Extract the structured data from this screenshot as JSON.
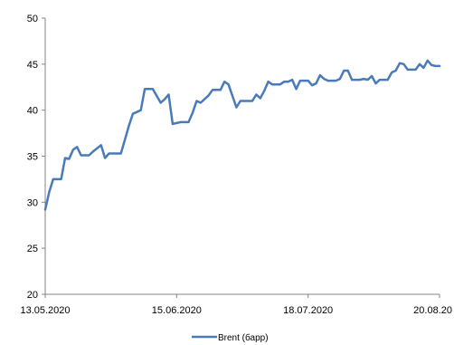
{
  "chart_data": {
    "type": "line",
    "title": "",
    "xlabel": "",
    "ylabel": "",
    "ylim": [
      20,
      50
    ],
    "yticks": [
      20,
      25,
      30,
      35,
      40,
      45,
      50
    ],
    "xlim": [
      "2020-05-13",
      "2020-08-20"
    ],
    "xtick_labels": [
      "13.05.2020",
      "15.06.2020",
      "18.07.2020",
      "20.08.20"
    ],
    "xtick_dates": [
      "2020-05-13",
      "2020-06-15",
      "2020-07-18",
      "2020-08-20"
    ],
    "grid": false,
    "legend_position": "bottom",
    "series": [
      {
        "name": "Brent (барр)",
        "color": "#4a7ab8",
        "x": [
          "2020-05-13",
          "2020-05-14",
          "2020-05-15",
          "2020-05-17",
          "2020-05-18",
          "2020-05-19",
          "2020-05-20",
          "2020-05-21",
          "2020-05-22",
          "2020-05-23",
          "2020-05-24",
          "2020-05-25",
          "2020-05-27",
          "2020-05-28",
          "2020-05-29",
          "2020-05-30",
          "2020-05-31",
          "2020-06-01",
          "2020-06-03",
          "2020-06-04",
          "2020-06-05",
          "2020-06-06",
          "2020-06-07",
          "2020-06-08",
          "2020-06-09",
          "2020-06-11",
          "2020-06-12",
          "2020-06-13",
          "2020-06-14",
          "2020-06-16",
          "2020-06-17",
          "2020-06-18",
          "2020-06-19",
          "2020-06-20",
          "2020-06-21",
          "2020-06-23",
          "2020-06-24",
          "2020-06-25",
          "2020-06-26",
          "2020-06-27",
          "2020-06-28",
          "2020-06-30",
          "2020-07-01",
          "2020-07-02",
          "2020-07-03",
          "2020-07-04",
          "2020-07-05",
          "2020-07-06",
          "2020-07-07",
          "2020-07-08",
          "2020-07-09",
          "2020-07-10",
          "2020-07-11",
          "2020-07-12",
          "2020-07-13",
          "2020-07-14",
          "2020-07-15",
          "2020-07-16",
          "2020-07-17",
          "2020-07-18",
          "2020-07-19",
          "2020-07-20",
          "2020-07-21",
          "2020-07-22",
          "2020-07-23",
          "2020-07-24",
          "2020-07-25",
          "2020-07-26",
          "2020-07-27",
          "2020-07-28",
          "2020-07-29",
          "2020-07-30",
          "2020-07-31",
          "2020-08-01",
          "2020-08-02",
          "2020-08-03",
          "2020-08-04",
          "2020-08-05",
          "2020-08-06",
          "2020-08-07",
          "2020-08-08",
          "2020-08-09",
          "2020-08-10",
          "2020-08-11",
          "2020-08-12",
          "2020-08-13",
          "2020-08-14",
          "2020-08-15",
          "2020-08-16",
          "2020-08-17",
          "2020-08-18",
          "2020-08-19",
          "2020-08-20"
        ],
        "values": [
          29.2,
          31.1,
          32.5,
          32.5,
          34.8,
          34.7,
          35.7,
          36.0,
          35.1,
          35.1,
          35.1,
          35.5,
          36.2,
          34.8,
          35.3,
          35.3,
          35.3,
          35.3,
          38.3,
          39.6,
          39.8,
          40.0,
          42.3,
          42.3,
          42.3,
          40.8,
          41.2,
          41.7,
          38.5,
          38.7,
          38.7,
          38.7,
          39.7,
          41.0,
          40.8,
          41.6,
          42.2,
          42.2,
          42.2,
          43.1,
          42.8,
          40.3,
          41.0,
          41.0,
          41.0,
          41.0,
          41.7,
          41.3,
          42.1,
          43.1,
          42.8,
          42.8,
          42.8,
          43.1,
          43.1,
          43.3,
          42.3,
          43.2,
          43.2,
          43.2,
          42.7,
          42.9,
          43.8,
          43.4,
          43.2,
          43.2,
          43.2,
          43.4,
          44.3,
          44.3,
          43.3,
          43.3,
          43.3,
          43.4,
          43.3,
          43.7,
          42.9,
          43.3,
          43.3,
          43.3,
          44.1,
          44.3,
          45.1,
          45.0,
          44.4,
          44.4,
          44.4,
          45.0,
          44.6,
          45.4,
          44.9,
          44.8,
          44.8
        ]
      }
    ]
  }
}
